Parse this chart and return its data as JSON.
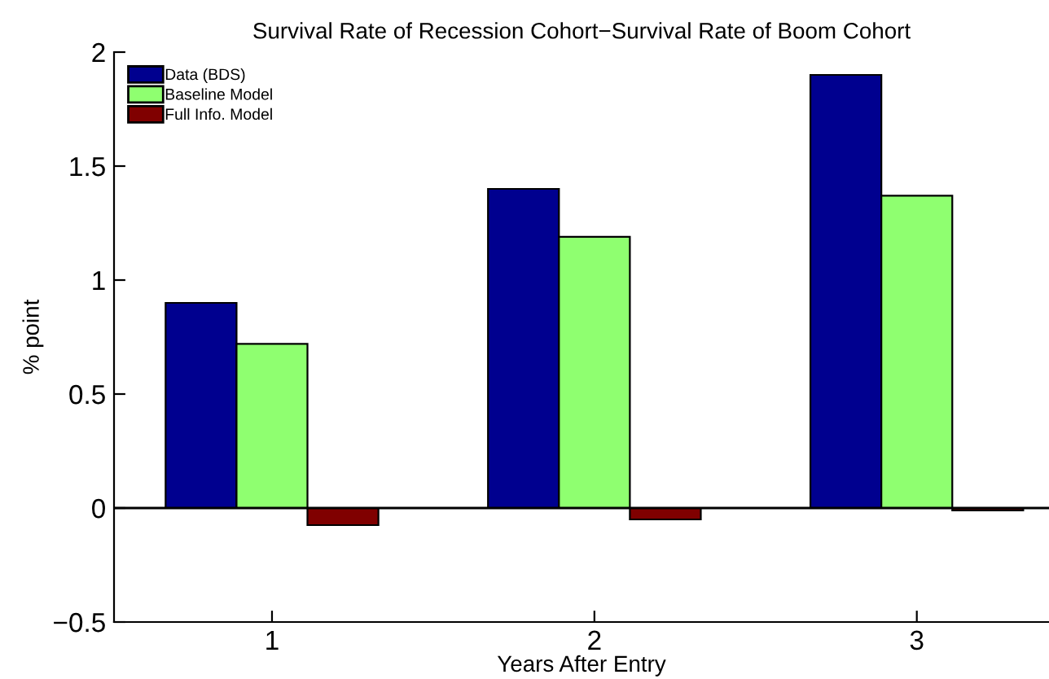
{
  "chart_data": {
    "type": "bar",
    "title": "Survival Rate of Recession Cohort−Survival Rate of Boom Cohort",
    "xlabel": "Years After Entry",
    "ylabel": "% point",
    "categories": [
      "1",
      "2",
      "3"
    ],
    "series": [
      {
        "name": "Data (BDS)",
        "color": "#00008f",
        "values": [
          0.9,
          1.4,
          1.9
        ]
      },
      {
        "name": "Baseline Model",
        "color": "#8fff70",
        "values": [
          0.72,
          1.19,
          1.37
        ]
      },
      {
        "name": "Full Info. Model",
        "color": "#800000",
        "values": [
          -0.075,
          -0.05,
          -0.01
        ]
      }
    ],
    "ylim": [
      -0.5,
      2
    ],
    "yticks": [
      {
        "value": -0.5,
        "label": "−0.5"
      },
      0,
      0.5,
      1,
      1.5,
      2
    ],
    "ref_lines": [
      {
        "axis": "y",
        "value": 0,
        "color": "#000000"
      }
    ],
    "legend": "top left"
  }
}
